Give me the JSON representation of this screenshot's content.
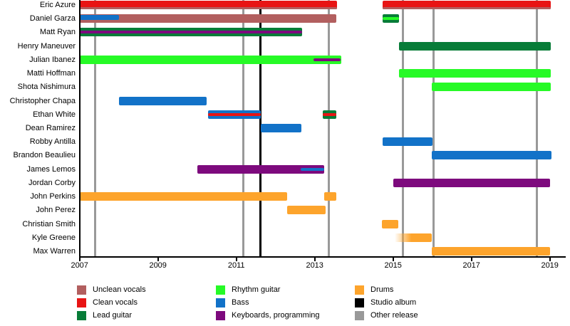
{
  "chart_data": {
    "type": "timeline",
    "description": "Band members timeline (Gantt-style) with instrument roles and release markers",
    "x_axis": {
      "min": 2007,
      "max": 2019.4,
      "ticks": [
        2007,
        2009,
        2011,
        2013,
        2015,
        2017,
        2019
      ]
    },
    "members": [
      {
        "name": "Eric Azure",
        "segments": [
          {
            "start": 2007.0,
            "end": 2013.57,
            "color": "clean_vocals",
            "stripes": [
              {
                "color": "unclean_vocals",
                "pos": "bottom"
              }
            ]
          },
          {
            "start": 2014.73,
            "end": 2019.03,
            "color": "clean_vocals",
            "stripes": [
              {
                "color": "unclean_vocals",
                "pos": "bottom"
              }
            ]
          }
        ]
      },
      {
        "name": "Daniel Garza",
        "segments": [
          {
            "start": 2007.0,
            "end": 2013.55,
            "color": "unclean_vocals",
            "stripes": [
              {
                "color": "bass",
                "pos": "top",
                "start": 2007.0,
                "end": 2008.0
              }
            ]
          },
          {
            "start": 2014.73,
            "end": 2015.15,
            "color": "lead_guitar",
            "stripes": [
              {
                "color": "rhythm_guitar",
                "pos": "center"
              }
            ]
          }
        ]
      },
      {
        "name": "Matt Ryan",
        "segments": [
          {
            "start": 2007.0,
            "end": 2012.67,
            "color": "lead_guitar",
            "stripes": [
              {
                "color": "keyboards",
                "pos": "center"
              }
            ]
          }
        ]
      },
      {
        "name": "Henry Maneuver",
        "segments": [
          {
            "start": 2015.15,
            "end": 2019.03,
            "color": "lead_guitar"
          }
        ]
      },
      {
        "name": "Julian Ibanez",
        "segments": [
          {
            "start": 2007.0,
            "end": 2013.68,
            "color": "rhythm_guitar",
            "stripes": [
              {
                "color": "keyboards",
                "pos": "center",
                "start": 2012.97,
                "end": 2013.66
              }
            ]
          }
        ]
      },
      {
        "name": "Matti Hoffman",
        "segments": [
          {
            "start": 2015.15,
            "end": 2019.03,
            "color": "rhythm_guitar"
          }
        ]
      },
      {
        "name": "Shota Nishimura",
        "segments": [
          {
            "start": 2015.99,
            "end": 2019.03,
            "color": "rhythm_guitar"
          }
        ]
      },
      {
        "name": "Christopher Chapa",
        "segments": [
          {
            "start": 2008.0,
            "end": 2010.24,
            "color": "bass"
          }
        ]
      },
      {
        "name": "Ethan White",
        "segments": [
          {
            "start": 2010.27,
            "end": 2011.62,
            "color": "bass",
            "stripes": [
              {
                "color": "clean_vocals",
                "pos": "center"
              }
            ]
          },
          {
            "start": 2013.21,
            "end": 2013.55,
            "color": "lead_guitar",
            "stripes": [
              {
                "color": "clean_vocals",
                "pos": "center"
              }
            ]
          }
        ]
      },
      {
        "name": "Dean Ramirez",
        "segments": [
          {
            "start": 2011.62,
            "end": 2012.66,
            "color": "bass"
          }
        ]
      },
      {
        "name": "Robby Antilla",
        "segments": [
          {
            "start": 2014.73,
            "end": 2016.0,
            "color": "bass"
          }
        ]
      },
      {
        "name": "Brandon Beaulieu",
        "segments": [
          {
            "start": 2015.99,
            "end": 2019.05,
            "color": "bass"
          }
        ]
      },
      {
        "name": "James Lemos",
        "segments": [
          {
            "start": 2010.0,
            "end": 2013.25,
            "color": "keyboards",
            "stripes": [
              {
                "color": "bass",
                "pos": "center",
                "start": 2012.64,
                "end": 2013.25
              }
            ]
          }
        ]
      },
      {
        "name": "Jordan Corby",
        "segments": [
          {
            "start": 2015.0,
            "end": 2019.0,
            "color": "keyboards"
          }
        ]
      },
      {
        "name": "John Perkins",
        "segments": [
          {
            "start": 2007.0,
            "end": 2012.3,
            "color": "drums"
          },
          {
            "start": 2013.25,
            "end": 2013.55,
            "color": "drums"
          }
        ]
      },
      {
        "name": "John Perez",
        "segments": [
          {
            "start": 2012.3,
            "end": 2013.27,
            "color": "drums"
          }
        ]
      },
      {
        "name": "Christian Smith",
        "segments": [
          {
            "start": 2014.72,
            "end": 2015.13,
            "color": "drums"
          }
        ]
      },
      {
        "name": "Kyle Greene",
        "segments": [
          {
            "start": 2015.05,
            "end": 2015.99,
            "color": "drums",
            "fade_left": true
          }
        ]
      },
      {
        "name": "Max Warren",
        "segments": [
          {
            "start": 2015.99,
            "end": 2019.0,
            "color": "drums"
          }
        ]
      }
    ],
    "releases": {
      "studio_albums": [
        2011.62
      ],
      "other_releases": [
        2007.4,
        2011.17,
        2013.36,
        2015.25,
        2016.03,
        2018.67
      ]
    },
    "legend": {
      "columns": [
        [
          {
            "label": "Unclean vocals",
            "color": "unclean_vocals"
          },
          {
            "label": "Clean vocals",
            "color": "clean_vocals"
          },
          {
            "label": "Lead guitar",
            "color": "lead_guitar"
          }
        ],
        [
          {
            "label": "Rhythm guitar",
            "color": "rhythm_guitar"
          },
          {
            "label": "Bass",
            "color": "bass"
          },
          {
            "label": "Keyboards, programming",
            "color": "keyboards"
          }
        ],
        [
          {
            "label": "Drums",
            "color": "drums"
          },
          {
            "label": "Studio album",
            "color": "studio_album"
          },
          {
            "label": "Other release",
            "color": "other_release"
          }
        ]
      ]
    }
  },
  "colors": {
    "unclean_vocals": "#b25f5f",
    "clean_vocals": "#e81414",
    "lead_guitar": "#077c38",
    "rhythm_guitar": "#26fa26",
    "bass": "#1272c8",
    "keyboards": "#7d0a7d",
    "drums": "#fda42c",
    "studio_album": "#000000",
    "other_release": "#999999"
  }
}
